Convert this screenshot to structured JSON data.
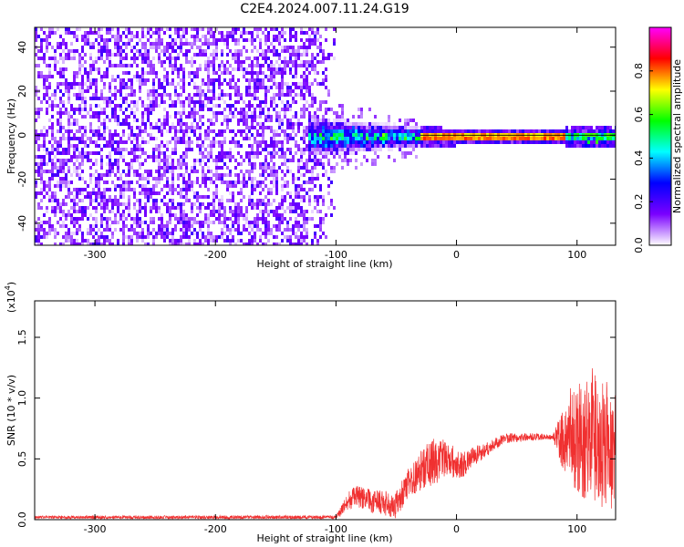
{
  "title": "C2E4.2024.007.11.24.G19",
  "chart_data": [
    {
      "type": "heatmap",
      "xlabel": "Height of straight line (km)",
      "ylabel": "Frequency (Hz)",
      "xlim": [
        -350,
        132
      ],
      "ylim": [
        -50,
        49
      ],
      "xticks": [
        -300,
        -200,
        -100,
        0,
        100
      ],
      "yticks": [
        -40,
        -20,
        0,
        20,
        40
      ],
      "colorbar": {
        "label": "Normalized spectral amplitude",
        "range": [
          0,
          1
        ],
        "ticks": [
          "0.0",
          "0.2",
          "0.4",
          "0.6",
          "0.8"
        ],
        "colors": [
          "#ffffff",
          "#7a00ff",
          "#0000ff",
          "#00ffff",
          "#00ff00",
          "#ffff00",
          "#ff0000",
          "#ff00ff"
        ]
      },
      "features": [
        {
          "region": "noise",
          "x": [
            -350,
            -100
          ],
          "freq": [
            -50,
            49
          ],
          "amplitude": 0.05
        },
        {
          "region": "transition",
          "x": [
            -125,
            -30
          ],
          "freq_center": 0,
          "freq_halfwidth": [
            6,
            3
          ],
          "amplitude": 0.4
        },
        {
          "region": "carrier",
          "x": [
            -30,
            90
          ],
          "freq_center": 0,
          "freq_halfwidth": 1,
          "amplitude": 0.95
        },
        {
          "region": "scintillating",
          "x": [
            90,
            132
          ],
          "freq_center": 0,
          "freq_halfwidth": 2,
          "amplitude": 0.6
        }
      ]
    },
    {
      "type": "line",
      "xlabel": "Height of straight line (km)",
      "ylabel": "SNR (10 * v/v)",
      "yscale_label": "(x10",
      "yscale_exp": "4",
      "xlim": [
        -350,
        132
      ],
      "ylim": [
        0,
        1.8
      ],
      "xticks": [
        -300,
        -200,
        -100,
        0,
        100
      ],
      "yticks": [
        "0.0",
        "0.5",
        "1.0",
        "1.5"
      ],
      "color": "#f03030",
      "series_profile": [
        {
          "x": -350,
          "y": 0.02
        },
        {
          "x": -200,
          "y": 0.02
        },
        {
          "x": -100,
          "y": 0.02
        },
        {
          "x": -85,
          "y": 0.2
        },
        {
          "x": -70,
          "y": 0.15
        },
        {
          "x": -50,
          "y": 0.12
        },
        {
          "x": -40,
          "y": 0.3
        },
        {
          "x": -25,
          "y": 0.45
        },
        {
          "x": -10,
          "y": 0.5
        },
        {
          "x": 5,
          "y": 0.45
        },
        {
          "x": 20,
          "y": 0.55
        },
        {
          "x": 40,
          "y": 0.67
        },
        {
          "x": 60,
          "y": 0.68
        },
        {
          "x": 80,
          "y": 0.68
        },
        {
          "x": 95,
          "y": 0.65
        },
        {
          "x": 110,
          "y": 0.7
        },
        {
          "x": 120,
          "y": 0.6
        },
        {
          "x": 132,
          "y": 0.55
        }
      ],
      "noise_profile": [
        {
          "x": -350,
          "a": 0.012
        },
        {
          "x": -100,
          "a": 0.015
        },
        {
          "x": -90,
          "a": 0.08
        },
        {
          "x": -40,
          "a": 0.12
        },
        {
          "x": -20,
          "a": 0.2
        },
        {
          "x": 0,
          "a": 0.12
        },
        {
          "x": 30,
          "a": 0.05
        },
        {
          "x": 80,
          "a": 0.02
        },
        {
          "x": 88,
          "a": 0.25
        },
        {
          "x": 100,
          "a": 0.45
        },
        {
          "x": 115,
          "a": 0.6
        },
        {
          "x": 132,
          "a": 0.45
        }
      ]
    }
  ]
}
